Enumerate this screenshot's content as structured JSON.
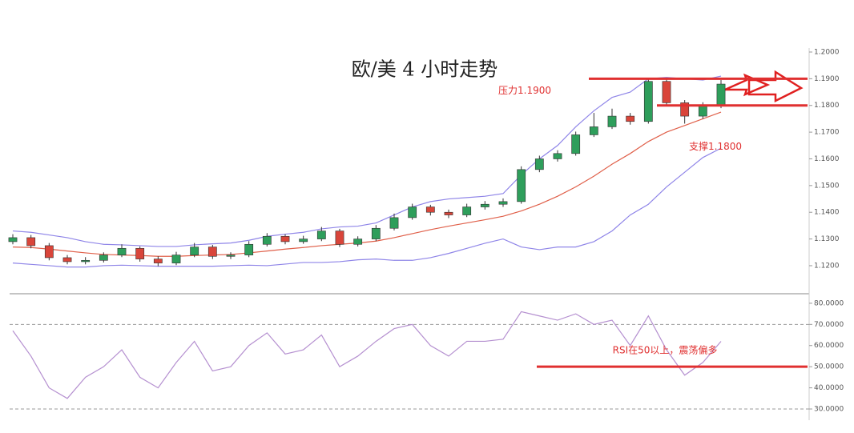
{
  "chart_data": [
    {
      "type": "candlestick",
      "title": "欧/美 4 小时走势",
      "open": [
        1.129,
        1.1305,
        1.1275,
        1.123,
        1.1215,
        1.122,
        1.124,
        1.1265,
        1.1225,
        1.121,
        1.124,
        1.127,
        1.1235,
        1.124,
        1.128,
        1.131,
        1.129,
        1.13,
        1.133,
        1.128,
        1.13,
        1.134,
        1.138,
        1.142,
        1.14,
        1.139,
        1.142,
        1.143,
        1.144,
        1.156,
        1.16,
        1.162,
        1.169,
        1.172,
        1.176,
        1.174,
        1.189,
        1.181,
        1.176,
        1.18
      ],
      "high": [
        1.1318,
        1.1315,
        1.1285,
        1.124,
        1.1232,
        1.125,
        1.128,
        1.1272,
        1.1235,
        1.1252,
        1.1285,
        1.1278,
        1.125,
        1.1292,
        1.1322,
        1.1318,
        1.1312,
        1.1345,
        1.1338,
        1.131,
        1.1352,
        1.1395,
        1.1432,
        1.1428,
        1.141,
        1.1432,
        1.1442,
        1.1452,
        1.1572,
        1.1612,
        1.1632,
        1.1702,
        1.1772,
        1.1788,
        1.1772,
        1.19,
        1.1898,
        1.182,
        1.1812,
        1.1895
      ],
      "low": [
        1.128,
        1.1265,
        1.122,
        1.1205,
        1.1205,
        1.1212,
        1.1232,
        1.1215,
        1.1198,
        1.1202,
        1.1232,
        1.1225,
        1.1225,
        1.1232,
        1.1272,
        1.128,
        1.1282,
        1.1292,
        1.127,
        1.1272,
        1.1292,
        1.1332,
        1.1372,
        1.1388,
        1.1378,
        1.1382,
        1.141,
        1.142,
        1.1432,
        1.155,
        1.159,
        1.1612,
        1.1682,
        1.1712,
        1.1728,
        1.1732,
        1.18,
        1.1732,
        1.175,
        1.179
      ],
      "close": [
        1.1305,
        1.1275,
        1.123,
        1.1215,
        1.122,
        1.124,
        1.1265,
        1.1225,
        1.121,
        1.124,
        1.127,
        1.1235,
        1.124,
        1.128,
        1.131,
        1.129,
        1.13,
        1.133,
        1.128,
        1.13,
        1.134,
        1.138,
        1.142,
        1.14,
        1.139,
        1.142,
        1.143,
        1.144,
        1.156,
        1.16,
        1.162,
        1.169,
        1.172,
        1.176,
        1.174,
        1.189,
        1.181,
        1.176,
        1.18,
        1.188
      ],
      "up_color": "#2e9e5b",
      "down_color": "#d9453a",
      "bands": [
        {
          "color": "#8f85e8",
          "values": [
            1.133,
            1.1325,
            1.1315,
            1.1305,
            1.129,
            1.128,
            1.1278,
            1.1275,
            1.1272,
            1.1272,
            1.1278,
            1.1282,
            1.1285,
            1.1295,
            1.131,
            1.1318,
            1.1325,
            1.1338,
            1.1345,
            1.1348,
            1.136,
            1.139,
            1.142,
            1.144,
            1.145,
            1.1455,
            1.146,
            1.147,
            1.154,
            1.16,
            1.165,
            1.172,
            1.178,
            1.183,
            1.185,
            1.19,
            1.1905,
            1.19,
            1.1895,
            1.191
          ]
        },
        {
          "color": "#e0604a",
          "values": [
            1.127,
            1.1268,
            1.1262,
            1.1255,
            1.1248,
            1.1242,
            1.124,
            1.1238,
            1.1235,
            1.1235,
            1.1238,
            1.124,
            1.1242,
            1.1248,
            1.1255,
            1.1262,
            1.1268,
            1.1275,
            1.128,
            1.1285,
            1.1292,
            1.1305,
            1.132,
            1.1335,
            1.1348,
            1.136,
            1.1372,
            1.1385,
            1.1405,
            1.143,
            1.146,
            1.1495,
            1.1535,
            1.158,
            1.162,
            1.1665,
            1.17,
            1.1725,
            1.175,
            1.1775
          ]
        },
        {
          "color": "#8f85e8",
          "values": [
            1.121,
            1.1205,
            1.12,
            1.1195,
            1.1195,
            1.12,
            1.1202,
            1.12,
            1.1198,
            1.1198,
            1.1198,
            1.1198,
            1.12,
            1.1202,
            1.12,
            1.1206,
            1.1212,
            1.1212,
            1.1215,
            1.1222,
            1.1225,
            1.122,
            1.122,
            1.123,
            1.1246,
            1.1265,
            1.1284,
            1.13,
            1.127,
            1.126,
            1.127,
            1.127,
            1.129,
            1.133,
            1.139,
            1.143,
            1.1495,
            1.155,
            1.1605,
            1.164
          ]
        }
      ],
      "ylim": [
        1.1095,
        1.2
      ],
      "yticks": [
        {
          "value": 1.12,
          "label": "1.1200"
        },
        {
          "value": 1.13,
          "label": "1.1300"
        },
        {
          "value": 1.14,
          "label": "1.1400"
        },
        {
          "value": 1.15,
          "label": "1.1500"
        },
        {
          "value": 1.16,
          "label": "1.1600"
        },
        {
          "value": 1.17,
          "label": "1.1700"
        },
        {
          "value": 1.18,
          "label": "1.1800"
        },
        {
          "value": 1.19,
          "label": "1.1900"
        },
        {
          "value": 1.2,
          "label": "1.2000"
        }
      ],
      "hlines": [
        {
          "value": 1.19,
          "label": "压力1.1900",
          "color": "#e03030"
        },
        {
          "value": 1.18,
          "label": "支撑1.1800",
          "color": "#e03030"
        }
      ]
    },
    {
      "type": "line",
      "values": [
        67,
        55,
        40,
        35,
        45,
        50,
        58,
        45,
        40,
        52,
        62,
        48,
        50,
        60,
        66,
        56,
        58,
        65,
        50,
        55,
        62,
        68,
        70,
        60,
        55,
        62,
        62,
        63,
        76,
        74,
        72,
        75,
        70,
        72,
        60,
        74,
        58,
        46,
        52,
        62
      ],
      "color": "#b590d0",
      "ylim": [
        26.6,
        84.5
      ],
      "yticks": [
        {
          "value": 30,
          "label": "30.0000"
        },
        {
          "value": 40,
          "label": "40.0000"
        },
        {
          "value": 50,
          "label": "50.0000"
        },
        {
          "value": 60,
          "label": "60.0000"
        },
        {
          "value": 70,
          "label": "70.0000"
        },
        {
          "value": 80,
          "label": "80.0000"
        }
      ],
      "reference_lines": [
        70,
        30
      ],
      "hlines": [
        {
          "value": 50,
          "label": "RSI在50以上，震荡偏多",
          "color": "#e03030"
        }
      ]
    }
  ]
}
